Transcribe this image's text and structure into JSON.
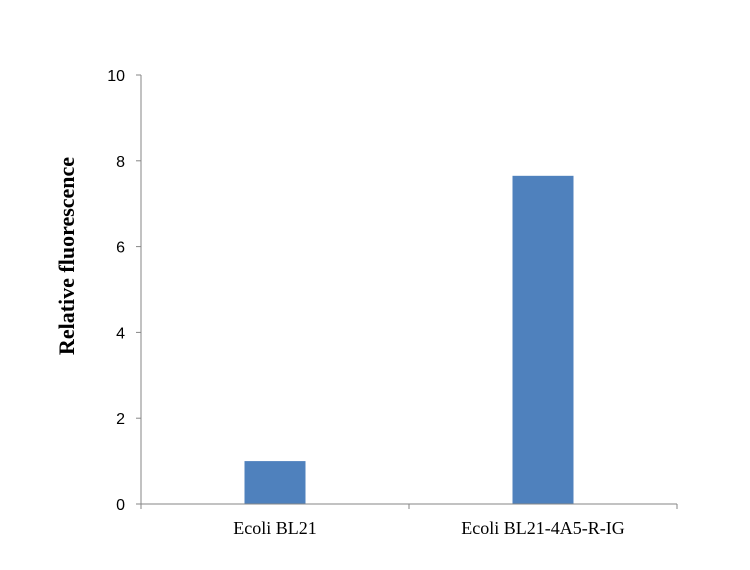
{
  "chart_data": {
    "type": "bar",
    "categories": [
      "Ecoli BL21",
      "Ecoli BL21-4A5-R-IG"
    ],
    "values": [
      1.0,
      7.65
    ],
    "title": "",
    "xlabel": "",
    "ylabel": "Relative fluorescence",
    "ylim": [
      0,
      10
    ],
    "yticks": [
      0,
      2,
      4,
      6,
      8,
      10
    ],
    "grid": false,
    "legend": "none",
    "bar_color": "#4f81bd",
    "axis_color": "#868686"
  }
}
